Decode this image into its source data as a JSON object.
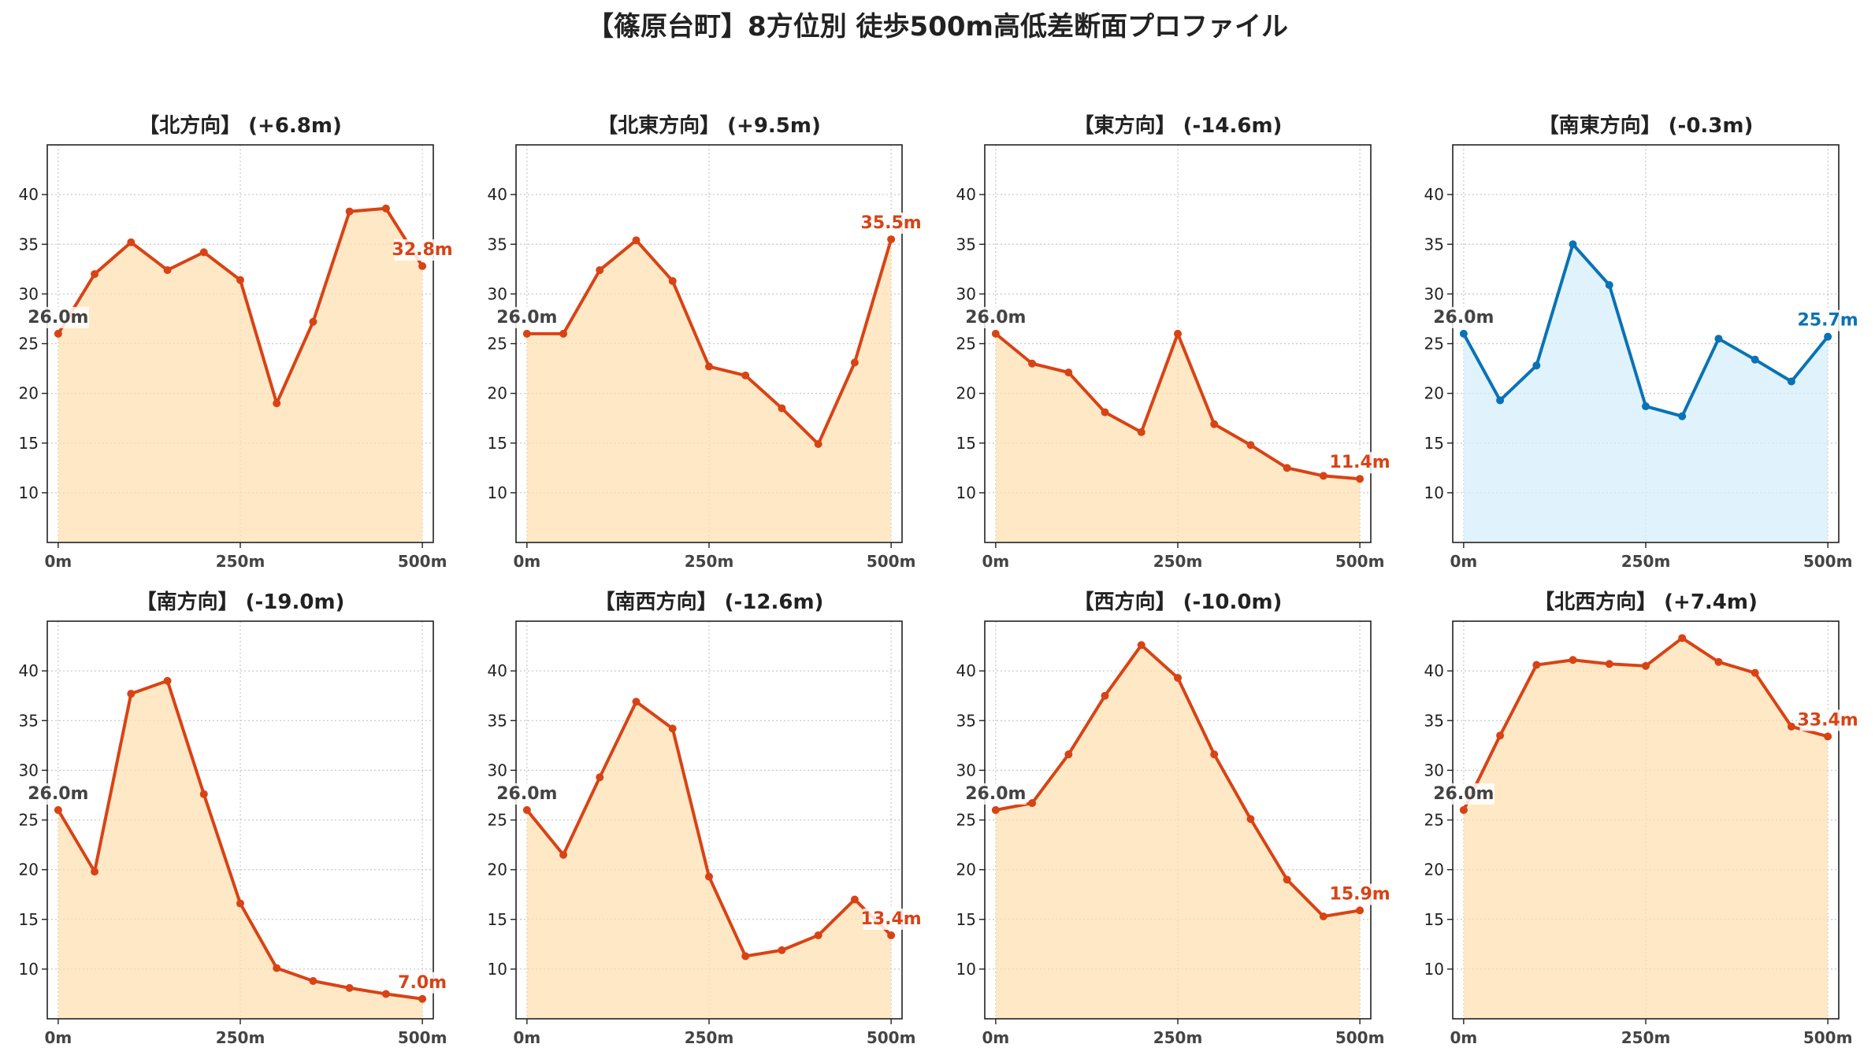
{
  "title": "【篠原台町】8方位別 徒歩500m高低差断面プロファイル",
  "colors": {
    "rise": "#d84315",
    "rise_fill": "#ffe0b2",
    "flat": "#0a72b5",
    "flat_fill": "#d6eef9",
    "start_label": "#444444"
  },
  "chart_data": [
    {
      "type": "area",
      "title": "【北方向】 (+6.8m)",
      "line_color": "rise",
      "x": [
        0,
        50,
        100,
        150,
        200,
        250,
        300,
        350,
        400,
        450,
        500
      ],
      "y": [
        26.0,
        32.0,
        35.2,
        32.4,
        34.2,
        31.4,
        19.0,
        27.2,
        38.3,
        38.6,
        32.8
      ],
      "start_label": "26.0m",
      "end_label": "32.8m",
      "xticks": [
        "0m",
        "250m",
        "500m"
      ],
      "yticks": [
        10,
        15,
        20,
        25,
        30,
        35,
        40
      ],
      "ylim": [
        5,
        45
      ],
      "xlim": [
        -15,
        515
      ],
      "grid": true
    },
    {
      "type": "area",
      "title": "【北東方向】 (+9.5m)",
      "line_color": "rise",
      "x": [
        0,
        50,
        100,
        150,
        200,
        250,
        300,
        350,
        400,
        450,
        500
      ],
      "y": [
        26.0,
        26.0,
        32.4,
        35.4,
        31.3,
        22.7,
        21.8,
        18.5,
        14.9,
        23.1,
        35.5
      ],
      "start_label": "26.0m",
      "end_label": "35.5m",
      "xticks": [
        "0m",
        "250m",
        "500m"
      ],
      "yticks": [
        10,
        15,
        20,
        25,
        30,
        35,
        40
      ],
      "ylim": [
        5,
        45
      ],
      "xlim": [
        -15,
        515
      ],
      "grid": true
    },
    {
      "type": "area",
      "title": "【東方向】 (-14.6m)",
      "line_color": "rise",
      "x": [
        0,
        50,
        100,
        150,
        200,
        250,
        300,
        350,
        400,
        450,
        500
      ],
      "y": [
        26.0,
        23.0,
        22.1,
        18.1,
        16.1,
        26.0,
        16.9,
        14.8,
        12.5,
        11.7,
        11.4
      ],
      "start_label": "26.0m",
      "end_label": "11.4m",
      "xticks": [
        "0m",
        "250m",
        "500m"
      ],
      "yticks": [
        10,
        15,
        20,
        25,
        30,
        35,
        40
      ],
      "ylim": [
        5,
        45
      ],
      "xlim": [
        -15,
        515
      ],
      "grid": true
    },
    {
      "type": "area",
      "title": "【南東方向】 (-0.3m)",
      "line_color": "flat",
      "x": [
        0,
        50,
        100,
        150,
        200,
        250,
        300,
        350,
        400,
        450,
        500
      ],
      "y": [
        26.0,
        19.3,
        22.8,
        35.0,
        30.9,
        18.7,
        17.7,
        25.5,
        23.4,
        21.2,
        25.7
      ],
      "start_label": "26.0m",
      "end_label": "25.7m",
      "xticks": [
        "0m",
        "250m",
        "500m"
      ],
      "yticks": [
        10,
        15,
        20,
        25,
        30,
        35,
        40
      ],
      "ylim": [
        5,
        45
      ],
      "xlim": [
        -15,
        515
      ],
      "grid": true
    },
    {
      "type": "area",
      "title": "【南方向】 (-19.0m)",
      "line_color": "rise",
      "x": [
        0,
        50,
        100,
        150,
        200,
        250,
        300,
        350,
        400,
        450,
        500
      ],
      "y": [
        26.0,
        19.8,
        37.7,
        39.0,
        27.6,
        16.6,
        10.1,
        8.8,
        8.1,
        7.5,
        7.0
      ],
      "start_label": "26.0m",
      "end_label": "7.0m",
      "xticks": [
        "0m",
        "250m",
        "500m"
      ],
      "yticks": [
        10,
        15,
        20,
        25,
        30,
        35,
        40
      ],
      "ylim": [
        5,
        45
      ],
      "xlim": [
        -15,
        515
      ],
      "grid": true
    },
    {
      "type": "area",
      "title": "【南西方向】 (-12.6m)",
      "line_color": "rise",
      "x": [
        0,
        50,
        100,
        150,
        200,
        250,
        300,
        350,
        400,
        450,
        500
      ],
      "y": [
        26.0,
        21.5,
        29.3,
        36.9,
        34.2,
        19.3,
        11.3,
        11.9,
        13.4,
        17.0,
        13.4
      ],
      "start_label": "26.0m",
      "end_label": "13.4m",
      "xticks": [
        "0m",
        "250m",
        "500m"
      ],
      "yticks": [
        10,
        15,
        20,
        25,
        30,
        35,
        40
      ],
      "ylim": [
        5,
        45
      ],
      "xlim": [
        -15,
        515
      ],
      "grid": true
    },
    {
      "type": "area",
      "title": "【西方向】 (-10.0m)",
      "line_color": "rise",
      "x": [
        0,
        50,
        100,
        150,
        200,
        250,
        300,
        350,
        400,
        450,
        500
      ],
      "y": [
        26.0,
        26.7,
        31.6,
        37.5,
        42.6,
        39.3,
        31.6,
        25.1,
        19.0,
        15.3,
        15.9
      ],
      "start_label": "26.0m",
      "end_label": "15.9m",
      "xticks": [
        "0m",
        "250m",
        "500m"
      ],
      "yticks": [
        10,
        15,
        20,
        25,
        30,
        35,
        40
      ],
      "ylim": [
        5,
        45
      ],
      "xlim": [
        -15,
        515
      ],
      "grid": true
    },
    {
      "type": "area",
      "title": "【北西方向】 (+7.4m)",
      "line_color": "rise",
      "x": [
        0,
        50,
        100,
        150,
        200,
        250,
        300,
        350,
        400,
        450,
        500
      ],
      "y": [
        26.0,
        33.5,
        40.6,
        41.1,
        40.7,
        40.5,
        43.3,
        40.9,
        39.8,
        34.4,
        33.4
      ],
      "start_label": "26.0m",
      "end_label": "33.4m",
      "xticks": [
        "0m",
        "250m",
        "500m"
      ],
      "yticks": [
        10,
        15,
        20,
        25,
        30,
        35,
        40
      ],
      "ylim": [
        5,
        45
      ],
      "xlim": [
        -15,
        515
      ],
      "grid": true
    }
  ]
}
